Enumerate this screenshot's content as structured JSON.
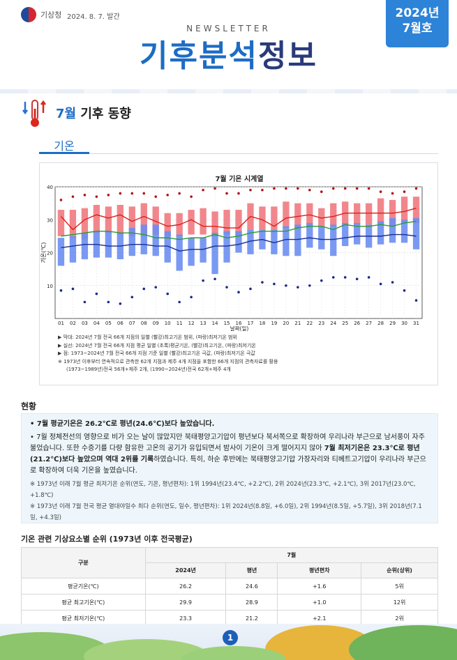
{
  "header": {
    "agency": "기상청",
    "pub_date": "2024. 8. 7. 발간",
    "kicker": "NEWSLETTER",
    "title_a": "기후분석",
    "title_b": "정보",
    "issue_year": "2024년",
    "issue_month": "7월호"
  },
  "section": {
    "title_accent": "7월",
    "title_rest": " 기후 동향",
    "tab": "기온"
  },
  "chart_data": {
    "type": "box-line",
    "title": "7월 기온 시계열",
    "xlabel": "날짜(일)",
    "ylabel": "기온(℃)",
    "ylim": [
      0,
      40
    ],
    "yticks": [
      "10",
      "20",
      "30",
      "40"
    ],
    "x": [
      "01",
      "02",
      "03",
      "04",
      "05",
      "06",
      "07",
      "08",
      "09",
      "10",
      "11",
      "12",
      "13",
      "14",
      "15",
      "16",
      "17",
      "18",
      "19",
      "20",
      "21",
      "22",
      "23",
      "24",
      "25",
      "26",
      "27",
      "28",
      "29",
      "30",
      "31"
    ],
    "tmax_range": [
      [
        25.0,
        33.0
      ],
      [
        24.5,
        33.0
      ],
      [
        24.0,
        33.5
      ],
      [
        26.0,
        34.5
      ],
      [
        26.0,
        34.0
      ],
      [
        25.5,
        34.5
      ],
      [
        25.0,
        34.0
      ],
      [
        25.0,
        35.0
      ],
      [
        25.5,
        34.0
      ],
      [
        25.0,
        32.0
      ],
      [
        25.0,
        32.0
      ],
      [
        25.5,
        33.0
      ],
      [
        25.5,
        33.5
      ],
      [
        25.0,
        32.5
      ],
      [
        25.5,
        33.0
      ],
      [
        25.0,
        33.0
      ],
      [
        27.0,
        35.0
      ],
      [
        27.0,
        34.0
      ],
      [
        27.0,
        34.0
      ],
      [
        27.5,
        35.5
      ],
      [
        27.5,
        35.0
      ],
      [
        28.0,
        35.0
      ],
      [
        28.0,
        33.5
      ],
      [
        28.0,
        35.0
      ],
      [
        28.5,
        35.5
      ],
      [
        28.5,
        35.0
      ],
      [
        28.5,
        35.0
      ],
      [
        28.5,
        36.5
      ],
      [
        28.0,
        36.0
      ],
      [
        29.0,
        37.0
      ],
      [
        29.0,
        37.0
      ]
    ],
    "tmin_range": [
      [
        16.0,
        24.5
      ],
      [
        17.0,
        25.0
      ],
      [
        18.0,
        26.0
      ],
      [
        18.5,
        26.5
      ],
      [
        18.5,
        26.5
      ],
      [
        18.0,
        26.0
      ],
      [
        19.0,
        27.5
      ],
      [
        19.5,
        28.5
      ],
      [
        19.0,
        28.5
      ],
      [
        17.0,
        26.5
      ],
      [
        14.5,
        25.5
      ],
      [
        16.0,
        24.5
      ],
      [
        17.0,
        24.5
      ],
      [
        13.5,
        26.0
      ],
      [
        17.0,
        26.5
      ],
      [
        20.0,
        26.5
      ],
      [
        19.5,
        27.0
      ],
      [
        21.0,
        27.0
      ],
      [
        19.5,
        27.0
      ],
      [
        19.0,
        28.0
      ],
      [
        19.0,
        28.5
      ],
      [
        21.5,
        29.0
      ],
      [
        21.0,
        28.0
      ],
      [
        19.0,
        28.5
      ],
      [
        22.0,
        29.0
      ],
      [
        22.5,
        29.0
      ],
      [
        21.5,
        28.5
      ],
      [
        22.5,
        29.5
      ],
      [
        23.0,
        30.5
      ],
      [
        23.0,
        30.0
      ],
      [
        21.0,
        30.5
      ]
    ],
    "tmax_mean": [
      31.0,
      27.0,
      30.0,
      31.5,
      30.5,
      31.5,
      29.5,
      31.0,
      29.5,
      28.0,
      28.5,
      30.0,
      28.0,
      28.0,
      27.5,
      27.5,
      31.0,
      30.0,
      28.0,
      30.5,
      31.0,
      31.5,
      30.5,
      31.0,
      32.0,
      32.0,
      32.0,
      32.0,
      32.0,
      32.5,
      33.5
    ],
    "tmean": [
      25.0,
      25.5,
      26.0,
      26.5,
      26.5,
      26.0,
      26.0,
      25.5,
      24.5,
      24.5,
      24.0,
      24.5,
      24.5,
      25.5,
      24.5,
      25.0,
      26.0,
      26.5,
      26.5,
      26.5,
      27.5,
      28.0,
      28.0,
      27.0,
      28.5,
      28.0,
      28.0,
      28.5,
      28.0,
      29.0,
      29.5
    ],
    "tmin_mean": [
      21.5,
      22.0,
      22.5,
      22.5,
      22.0,
      22.0,
      22.5,
      22.5,
      22.0,
      22.0,
      20.5,
      21.0,
      21.0,
      22.0,
      22.0,
      22.5,
      23.5,
      24.0,
      23.0,
      24.0,
      24.0,
      24.5,
      24.0,
      24.0,
      24.5,
      25.0,
      25.0,
      25.0,
      25.5,
      25.5,
      25.0
    ],
    "extreme_max": [
      36.0,
      37.0,
      37.5,
      37.0,
      37.5,
      38.0,
      38.0,
      38.0,
      37.0,
      37.5,
      38.0,
      37.0,
      39.0,
      39.5,
      38.0,
      38.0,
      39.0,
      39.0,
      39.5,
      39.5,
      39.5,
      39.0,
      38.5,
      39.5,
      39.5,
      39.5,
      39.5,
      38.5,
      38.0,
      38.5,
      39.5
    ],
    "extreme_min": [
      8.5,
      9.0,
      5.0,
      7.5,
      5.0,
      4.5,
      6.5,
      9.0,
      9.5,
      7.5,
      5.0,
      6.5,
      11.5,
      12.0,
      9.5,
      8.0,
      9.0,
      11.0,
      10.5,
      10.0,
      9.5,
      10.0,
      11.5,
      12.5,
      12.5,
      12.0,
      12.5,
      10.5,
      11.0,
      8.5,
      5.5
    ],
    "legend": {
      "box": "▶ 막대: 2024년 7월 전국 66개 지점의 일별 (빨강)최고기온 범위, (파랑)최저기온 범위",
      "line": "▶ 실선: 2024년 7월 전국 66개 지점 평균 일별 (초록)평균기온, (빨강)최고기온, (파랑)최저기온",
      "dot": "▶ 점: 1973~2024년 7월 전국 66개 지점 기준 일별 (빨강)최고기온 극값, (파랑)최저기온 극값",
      "note1": "※ 1973년 이후부터 연속적으로 관측한 62개 지점과 제주 4개 지점을 포함한 66개 지점의 관측자료를 활용",
      "note2": "(1973~1989년)전국 56개+제주 2개, (1990~2024년)전국 62개+제주 4개"
    }
  },
  "status": {
    "heading": "현황",
    "b1_a": "• 7월 평균기온은 26.2℃로 평년(24.6℃)보다 높았습니다.",
    "b2_a": "• 7월 정체전선의 영향으로 비가 오는 날이 많았지만 북태평양고기압이 평년보다 북서쪽으로 확장하여 우리나라 부근으로 남서풍이 자주 불었습니다. 또한 수증기를 다량 함유한 고온의 공기가 유입되면서 밤사이 기온이 크게 떨어지지 않아 ",
    "b2_bold": "7월 최저기온은 23.3℃로 평년(21.2℃)보다 높았으며 역대 2위를 기록",
    "b2_c": "하였습니다. 특히, 하순 후반에는 북태평양고기압 가장자리와 티베트고기압이 우리나라 부근으로 확장하여 더욱 기온을 높였습니다.",
    "note1": "※ 1973년 이래 7월 평균 최저기온 순위(연도, 기온, 평년편차): 1위 1994년(23.4℃, +2.2℃), 2위 2024년(23.3℃, +2.1℃), 3위 2017년(23.0℃, +1.8℃)",
    "note2": "※ 1973년 이래 7월 전국 평균 열대야일수 최다 순위(연도, 일수, 평년편차): 1위 2024년(8.8일, +6.0일), 2위 1994년(8.5일, +5.7일), 3위 2018년(7.1일, +4.3일)"
  },
  "table": {
    "heading": "기온 관련 기상요소별 순위 (1973년 이후 전국평균)",
    "col_group": "구분",
    "month": "7월",
    "headers": [
      "2024년",
      "평년",
      "평년편차",
      "순위(상위)"
    ],
    "rows": [
      {
        "label": "평균기온(℃)",
        "v2024": "26.2",
        "normal": "24.6",
        "diff": "+1.6",
        "rank": "5위"
      },
      {
        "label": "평균 최고기온(℃)",
        "v2024": "29.9",
        "normal": "28.9",
        "diff": "+1.0",
        "rank": "12위"
      },
      {
        "label": "평균 최저기온(℃)",
        "v2024": "23.3",
        "normal": "21.2",
        "diff": "+2.1",
        "rank": "2위"
      }
    ]
  },
  "footer": {
    "page": "1"
  }
}
